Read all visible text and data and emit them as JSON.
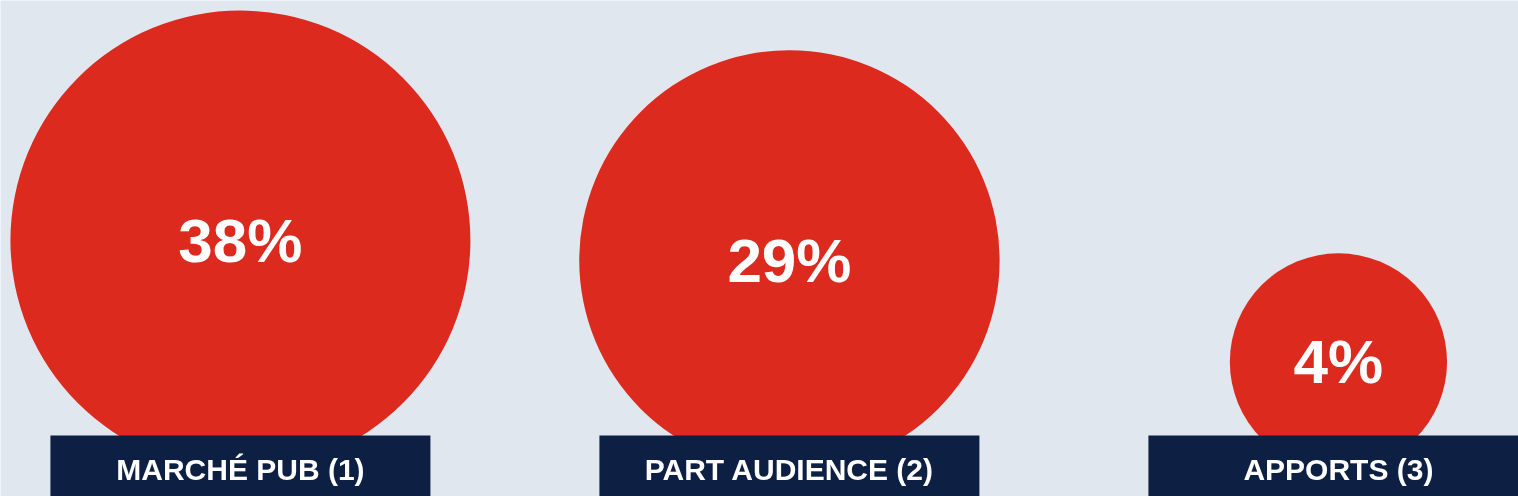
{
  "chart_data": {
    "type": "other",
    "categories": [
      "MARCHÉ PUB (1)",
      "PART AUDIENCE (2)",
      "APPORTS (3)"
    ],
    "values": [
      38,
      29,
      4
    ],
    "value_labels": [
      "38%",
      "29%",
      "4%"
    ],
    "color": "#dc2a1e"
  }
}
